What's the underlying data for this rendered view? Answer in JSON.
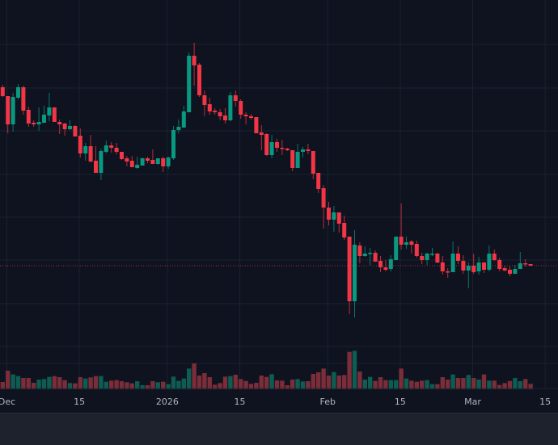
{
  "chart_data": {
    "type": "candlestick",
    "title": "",
    "xlabel": "",
    "ylabel": "",
    "ylim": [
      30,
      460
    ],
    "grid": true,
    "legend": "none",
    "colors": {
      "background": "#0e131f",
      "grid": "#1c2130",
      "up": "#089981",
      "down": "#f23645",
      "volume_up": "#0d5d52",
      "volume_down": "#7b2d39",
      "last_price_line": "#f23645"
    },
    "x_ticks": [
      {
        "label": "Dec",
        "index": 1
      },
      {
        "label": "15",
        "index": 15
      },
      {
        "label": "2026",
        "index": 32
      },
      {
        "label": "15",
        "index": 46
      },
      {
        "label": "Feb",
        "index": 63
      },
      {
        "label": "15",
        "index": 77
      },
      {
        "label": "Mar",
        "index": 91
      },
      {
        "label": "15",
        "index": 105
      }
    ],
    "y_gridlines": [
      405,
      351,
      298,
      244,
      191,
      138,
      84,
      31
    ],
    "last_price": 131,
    "candles_ohlc": [
      [
        352,
        355,
        340,
        341
      ],
      [
        341,
        341,
        295,
        306
      ],
      [
        306,
        345,
        297,
        340
      ],
      [
        339,
        356,
        337,
        352
      ],
      [
        352,
        354,
        318,
        323
      ],
      [
        324,
        328,
        303,
        307
      ],
      [
        308,
        311,
        303,
        306
      ],
      [
        306,
        327,
        298,
        309
      ],
      [
        308,
        329,
        308,
        318
      ],
      [
        317,
        345,
        310,
        327
      ],
      [
        327,
        327,
        309,
        309
      ],
      [
        309,
        312,
        294,
        306
      ],
      [
        307,
        308,
        292,
        300
      ],
      [
        300,
        311,
        299,
        304
      ],
      [
        304,
        305,
        291,
        291
      ],
      [
        292,
        301,
        265,
        270
      ],
      [
        270,
        283,
        261,
        279
      ],
      [
        279,
        293,
        259,
        260
      ],
      [
        261,
        279,
        246,
        246
      ],
      [
        246,
        276,
        237,
        273
      ],
      [
        272,
        286,
        270,
        280
      ],
      [
        280,
        284,
        271,
        277
      ],
      [
        277,
        283,
        269,
        272
      ],
      [
        272,
        272,
        262,
        263
      ],
      [
        264,
        267,
        254,
        260
      ],
      [
        261,
        267,
        253,
        253
      ],
      [
        252,
        266,
        251,
        256
      ],
      [
        255,
        265,
        255,
        264
      ],
      [
        264,
        266,
        258,
        261
      ],
      [
        262,
        275,
        257,
        257
      ],
      [
        257,
        264,
        256,
        264
      ],
      [
        264,
        266,
        247,
        254
      ],
      [
        254,
        266,
        251,
        265
      ],
      [
        264,
        304,
        262,
        299
      ],
      [
        299,
        312,
        295,
        303
      ],
      [
        302,
        329,
        302,
        322
      ],
      [
        321,
        395,
        321,
        391
      ],
      [
        391,
        407,
        354,
        379
      ],
      [
        380,
        382,
        340,
        342
      ],
      [
        342,
        348,
        316,
        330
      ],
      [
        331,
        339,
        318,
        322
      ],
      [
        323,
        326,
        318,
        321
      ],
      [
        321,
        325,
        311,
        316
      ],
      [
        317,
        326,
        307,
        311
      ],
      [
        311,
        346,
        310,
        342
      ],
      [
        342,
        348,
        328,
        335
      ],
      [
        335,
        337,
        313,
        318
      ],
      [
        318,
        321,
        306,
        316
      ],
      [
        316,
        319,
        312,
        314
      ],
      [
        315,
        315,
        295,
        295
      ],
      [
        296,
        305,
        274,
        293
      ],
      [
        294,
        295,
        267,
        268
      ],
      [
        268,
        293,
        264,
        284
      ],
      [
        284,
        288,
        272,
        277
      ],
      [
        277,
        287,
        268,
        276
      ],
      [
        276,
        277,
        273,
        274
      ],
      [
        274,
        274,
        248,
        252
      ],
      [
        252,
        282,
        252,
        272
      ],
      [
        272,
        278,
        265,
        275
      ],
      [
        275,
        282,
        269,
        273
      ],
      [
        273,
        273,
        238,
        245
      ],
      [
        246,
        246,
        221,
        226
      ],
      [
        227,
        231,
        177,
        203
      ],
      [
        203,
        210,
        181,
        188
      ],
      [
        188,
        205,
        173,
        197
      ],
      [
        197,
        197,
        172,
        183
      ],
      [
        184,
        193,
        163,
        166
      ],
      [
        167,
        167,
        71,
        87
      ],
      [
        87,
        175,
        67,
        157
      ],
      [
        156,
        160,
        134,
        143
      ],
      [
        143,
        155,
        142,
        146
      ],
      [
        146,
        153,
        132,
        147
      ],
      [
        147,
        150,
        136,
        136
      ],
      [
        137,
        143,
        123,
        129
      ],
      [
        129,
        138,
        124,
        126
      ],
      [
        127,
        144,
        124,
        139
      ],
      [
        138,
        167,
        138,
        167
      ],
      [
        167,
        208,
        151,
        157
      ],
      [
        157,
        167,
        152,
        160
      ],
      [
        161,
        163,
        146,
        157
      ],
      [
        158,
        162,
        141,
        143
      ],
      [
        143,
        147,
        133,
        138
      ],
      [
        138,
        147,
        132,
        146
      ],
      [
        145,
        153,
        143,
        146
      ],
      [
        146,
        147,
        134,
        135
      ],
      [
        135,
        143,
        120,
        124
      ],
      [
        124,
        128,
        116,
        123
      ],
      [
        123,
        161,
        123,
        146
      ],
      [
        146,
        155,
        133,
        137
      ],
      [
        137,
        144,
        121,
        125
      ],
      [
        125,
        135,
        103,
        131
      ],
      [
        131,
        146,
        121,
        123
      ],
      [
        124,
        142,
        120,
        135
      ],
      [
        135,
        135,
        122,
        126
      ],
      [
        126,
        156,
        124,
        146
      ],
      [
        146,
        151,
        137,
        138
      ],
      [
        138,
        141,
        124,
        127
      ],
      [
        128,
        131,
        124,
        125
      ],
      [
        126,
        130,
        118,
        121
      ],
      [
        121,
        132,
        121,
        127
      ],
      [
        127,
        148,
        127,
        134
      ],
      [
        134,
        139,
        130,
        133
      ],
      [
        133,
        133,
        131,
        131
      ]
    ],
    "volume": [
      27,
      69,
      55,
      49,
      42,
      42,
      24,
      36,
      38,
      46,
      49,
      45,
      34,
      23,
      22,
      45,
      40,
      44,
      49,
      49,
      28,
      32,
      34,
      30,
      26,
      22,
      30,
      15,
      15,
      30,
      26,
      28,
      19,
      47,
      31,
      40,
      77,
      96,
      51,
      60,
      45,
      17,
      23,
      47,
      49,
      54,
      38,
      31,
      20,
      24,
      51,
      46,
      56,
      33,
      32,
      15,
      36,
      38,
      29,
      30,
      57,
      63,
      77,
      51,
      64,
      51,
      53,
      139,
      143,
      66,
      36,
      46,
      31,
      45,
      34,
      34,
      34,
      77,
      40,
      32,
      28,
      32,
      34,
      19,
      19,
      45,
      36,
      55,
      42,
      42,
      53,
      42,
      36,
      55,
      32,
      32,
      16,
      23,
      31,
      42,
      30,
      38,
      20
    ]
  }
}
